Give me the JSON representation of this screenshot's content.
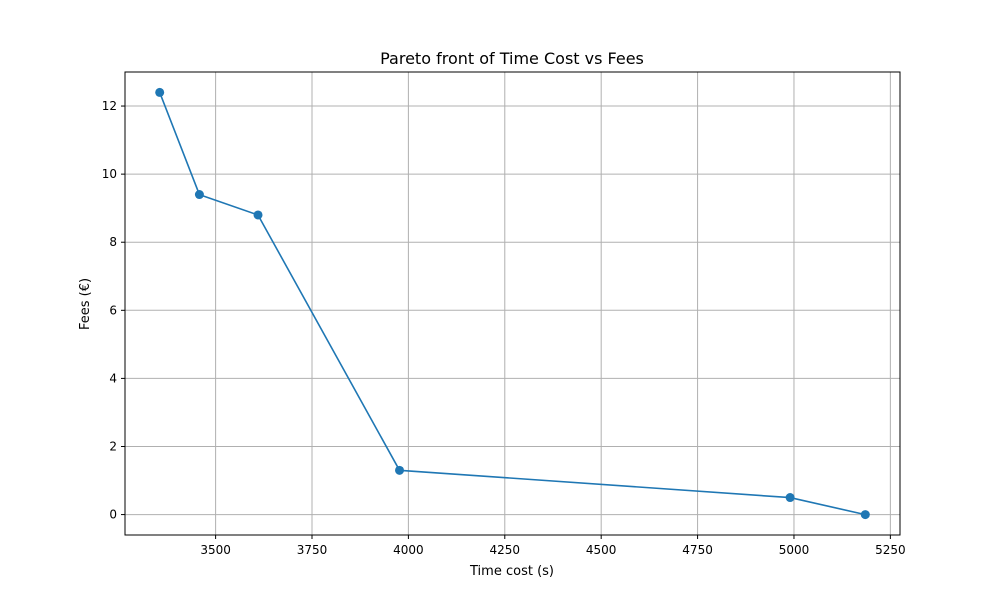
{
  "chart_data": {
    "type": "line",
    "title": "Pareto front of Time Cost vs Fees",
    "xlabel": "Time cost (s)",
    "ylabel": "Fees (€)",
    "xlim": [
      3265,
      5275
    ],
    "ylim": [
      -0.6,
      13.0
    ],
    "xticks": [
      3500,
      3750,
      4000,
      4250,
      4500,
      4750,
      5000,
      5250
    ],
    "yticks": [
      0,
      2,
      4,
      6,
      8,
      10,
      12
    ],
    "grid": true,
    "series": [
      {
        "color": "#1f77b4",
        "marker": "circle",
        "points": [
          {
            "x": 3355,
            "y": 12.4
          },
          {
            "x": 3458,
            "y": 9.4
          },
          {
            "x": 3610,
            "y": 8.8
          },
          {
            "x": 3977,
            "y": 1.3
          },
          {
            "x": 4990,
            "y": 0.5
          },
          {
            "x": 5185,
            "y": 0.0
          }
        ]
      }
    ]
  }
}
